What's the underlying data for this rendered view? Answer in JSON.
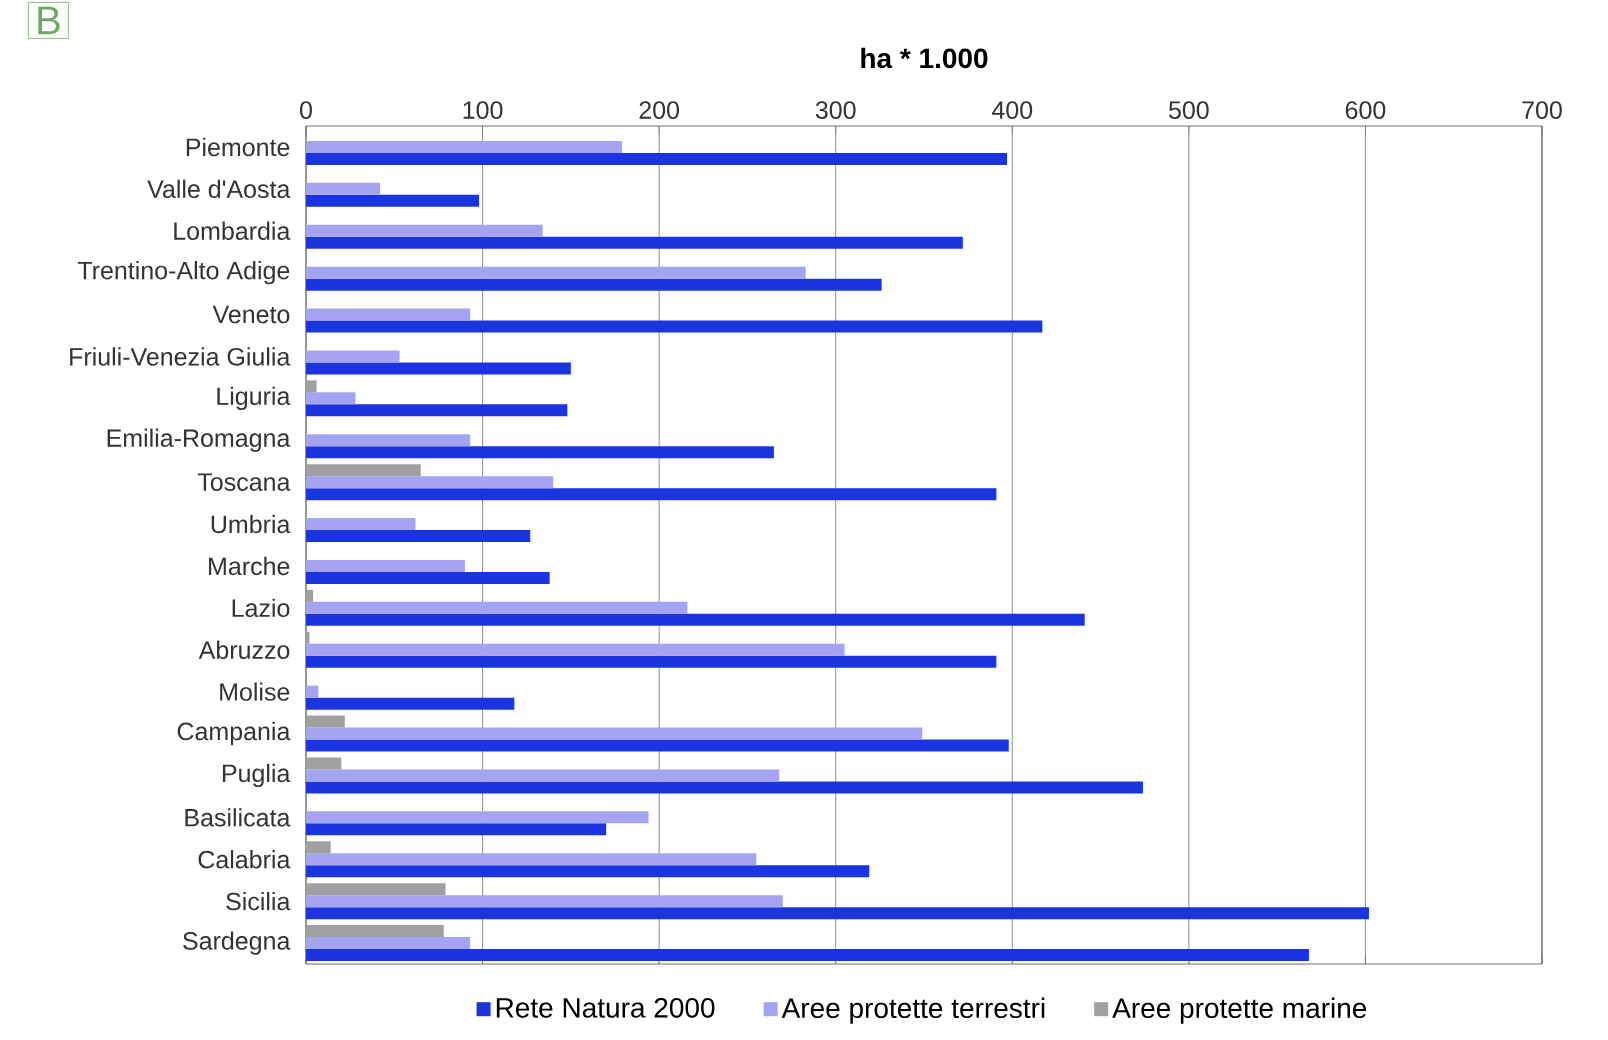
{
  "chart_data": {
    "type": "bar",
    "orientation": "horizontal",
    "title": "ha * 1.000",
    "annotations": [
      "B"
    ],
    "categories": [
      "Piemonte",
      "Valle d'Aosta",
      "Lombardia",
      "Trentino-Alto Adige",
      "Veneto",
      "Friuli-Venezia Giulia",
      "Liguria",
      "Emilia-Romagna",
      "Toscana",
      "Umbria",
      "Marche",
      "Lazio",
      "Abruzzo",
      "Molise",
      "Campania",
      "Puglia",
      "Basilicata",
      "Calabria",
      "Sicilia",
      "Sardegna"
    ],
    "series": [
      {
        "name": "Rete Natura 2000",
        "color": "#1a35e0",
        "values": [
          397,
          98,
          372,
          326,
          417,
          150,
          148,
          265,
          391,
          127,
          138,
          441,
          391,
          118,
          398,
          474,
          170,
          319,
          602,
          568
        ]
      },
      {
        "name": "Aree protette terrestri",
        "color": "#a4a4f2",
        "values": [
          179,
          42,
          134,
          283,
          93,
          53,
          28,
          93,
          140,
          62,
          90,
          216,
          305,
          7,
          349,
          268,
          194,
          255,
          270,
          93
        ]
      },
      {
        "name": "Aree protette marine",
        "color": "#a0a0a0",
        "values": [
          0,
          0,
          0,
          0,
          0,
          0,
          6,
          0,
          65,
          0,
          0,
          4,
          2,
          0,
          22,
          20,
          0,
          14,
          79,
          78
        ]
      }
    ],
    "xlim": [
      0,
      700
    ],
    "xticks": [
      0,
      100,
      200,
      300,
      400,
      500,
      600,
      700
    ],
    "grid": "x",
    "legend": "bottom"
  }
}
